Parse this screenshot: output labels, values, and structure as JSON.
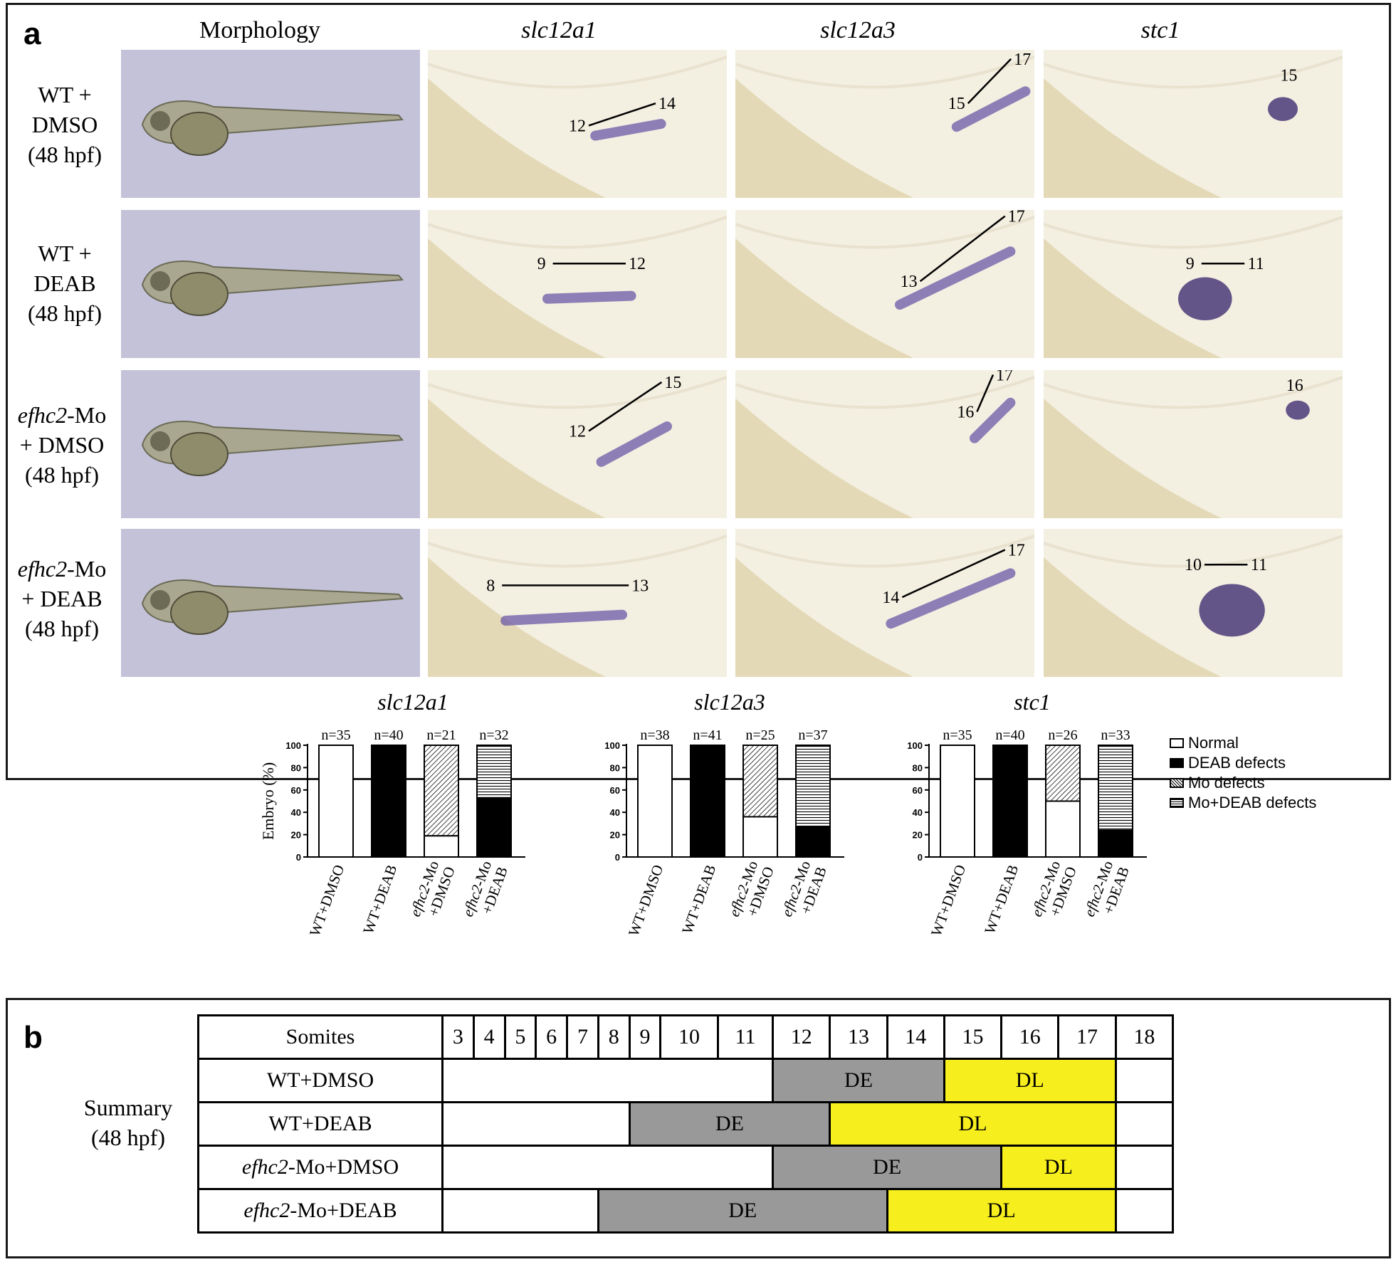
{
  "panel_a": {
    "label": "a",
    "column_headers": [
      "Morphology",
      "slc12a1",
      "slc12a3",
      "stc1"
    ],
    "rows": [
      {
        "label_parts": [
          "",
          "WT +",
          "DMSO",
          "(48 hpf)"
        ],
        "italic_prefix": "",
        "annotations": [
          [
            "12",
            "14"
          ],
          [
            "15",
            "17"
          ],
          [
            "15"
          ]
        ]
      },
      {
        "label_parts": [
          "",
          "WT +",
          "DEAB",
          "(48 hpf)"
        ],
        "italic_prefix": "",
        "annotations": [
          [
            "9",
            "12"
          ],
          [
            "13",
            "17"
          ],
          [
            "9",
            "11"
          ]
        ]
      },
      {
        "label_parts": [
          "efhc2",
          "-Mo",
          "+ DMSO",
          "(48 hpf)"
        ],
        "italic_prefix": "efhc2",
        "annotations": [
          [
            "12",
            "15"
          ],
          [
            "16",
            "17"
          ],
          [
            "16"
          ]
        ]
      },
      {
        "label_parts": [
          "efhc2",
          "-Mo",
          "+ DEAB",
          "(48 hpf)"
        ],
        "italic_prefix": "efhc2",
        "annotations": [
          [
            "8",
            "13"
          ],
          [
            "14",
            "17"
          ],
          [
            "10",
            "11"
          ]
        ]
      }
    ]
  },
  "chart_data": [
    {
      "type": "bar",
      "title": "slc12a1",
      "ylabel": "Embryo (%)",
      "ylim": [
        0,
        100
      ],
      "yticks": [
        "0",
        "20",
        "40",
        "60",
        "80",
        "100"
      ],
      "categories": [
        "WT+DMSO",
        "WT+DEAB",
        "efhc2-Mo +DMSO",
        "efhc2-Mo +DEAB"
      ],
      "n_labels": [
        "n=35",
        "n=40",
        "n=21",
        "n=32"
      ],
      "series": [
        {
          "name": "Normal",
          "values": [
            100,
            0,
            19,
            0
          ]
        },
        {
          "name": "DEAB defects",
          "values": [
            0,
            100,
            0,
            53
          ]
        },
        {
          "name": "Mo defects",
          "values": [
            0,
            0,
            81,
            0
          ]
        },
        {
          "name": "Mo+DEAB defects",
          "values": [
            0,
            0,
            0,
            47
          ]
        }
      ]
    },
    {
      "type": "bar",
      "title": "slc12a3",
      "ylim": [
        0,
        100
      ],
      "yticks": [
        "0",
        "20",
        "40",
        "60",
        "80",
        "100"
      ],
      "categories": [
        "WT+DMSO",
        "WT+DEAB",
        "efhc2-Mo +DMSO",
        "efhc2-Mo +DEAB"
      ],
      "n_labels": [
        "n=38",
        "n=41",
        "n=25",
        "n=37"
      ],
      "series": [
        {
          "name": "Normal",
          "values": [
            100,
            0,
            36,
            0
          ]
        },
        {
          "name": "DEAB defects",
          "values": [
            0,
            100,
            0,
            27
          ]
        },
        {
          "name": "Mo defects",
          "values": [
            0,
            0,
            64,
            0
          ]
        },
        {
          "name": "Mo+DEAB defects",
          "values": [
            0,
            0,
            0,
            73
          ]
        }
      ]
    },
    {
      "type": "bar",
      "title": "stc1",
      "ylim": [
        0,
        100
      ],
      "yticks": [
        "0",
        "20",
        "40",
        "60",
        "80",
        "100"
      ],
      "categories": [
        "WT+DMSO",
        "WT+DEAB",
        "efhc2-Mo +DMSO",
        "efhc2-Mo +DEAB"
      ],
      "n_labels": [
        "n=35",
        "n=40",
        "n=26",
        "n=33"
      ],
      "series": [
        {
          "name": "Normal",
          "values": [
            100,
            0,
            50,
            0
          ]
        },
        {
          "name": "DEAB defects",
          "values": [
            0,
            100,
            0,
            24
          ]
        },
        {
          "name": "Mo defects",
          "values": [
            0,
            0,
            50,
            0
          ]
        },
        {
          "name": "Mo+DEAB defects",
          "values": [
            0,
            0,
            0,
            76
          ]
        }
      ]
    }
  ],
  "legend": [
    "Normal",
    "DEAB defects",
    "Mo defects",
    "Mo+DEAB defects"
  ],
  "panel_b": {
    "label": "b",
    "summary_label": [
      "Summary",
      "(48 hpf)"
    ],
    "header": "Somites",
    "somites": [
      "3",
      "4",
      "5",
      "6",
      "7",
      "8",
      "9",
      "10",
      "11",
      "12",
      "13",
      "14",
      "15",
      "16",
      "17",
      "18"
    ],
    "rows": [
      {
        "name": "WT+DMSO",
        "italic_prefix": "",
        "rest": "WT+DMSO",
        "de": "DE",
        "dl": "DL",
        "de_range": [
          12,
          14
        ],
        "dl_range": [
          15,
          17
        ]
      },
      {
        "name": "WT+DEAB",
        "italic_prefix": "",
        "rest": "WT+DEAB",
        "de": "DE",
        "dl": "DL",
        "de_range": [
          9,
          12
        ],
        "dl_range": [
          13,
          17
        ]
      },
      {
        "name": "efhc2-Mo+DMSO",
        "italic_prefix": "efhc2",
        "rest": "-Mo+DMSO",
        "de": "DE",
        "dl": "DL",
        "de_range": [
          12,
          15
        ],
        "dl_range": [
          16,
          17
        ]
      },
      {
        "name": "efhc2-Mo+DEAB",
        "italic_prefix": "efhc2",
        "rest": "-Mo+DEAB",
        "de": "DE",
        "dl": "DL",
        "de_range": [
          8,
          13
        ],
        "dl_range": [
          14,
          17
        ]
      }
    ],
    "colors": {
      "de": "#999999",
      "dl": "#f7ef1d"
    }
  }
}
